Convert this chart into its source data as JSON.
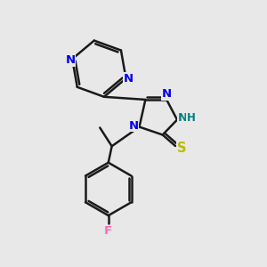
{
  "bg_color": "#e8e8e8",
  "bond_color": "#1a1a1a",
  "N_color": "#0000ee",
  "NH_color": "#008080",
  "S_color": "#bbbb00",
  "F_color": "#ff69b4",
  "line_width": 1.8,
  "figsize": [
    3.0,
    3.0
  ],
  "dpi": 100,
  "xlim": [
    0,
    10
  ],
  "ylim": [
    0,
    10
  ]
}
